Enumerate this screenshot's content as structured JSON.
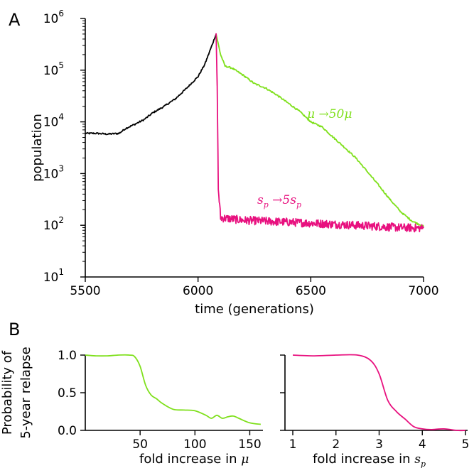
{
  "figure": {
    "panel_a_label": "A",
    "panel_b_label": "B"
  },
  "chart_data": [
    {
      "type": "line",
      "panel": "A",
      "xlabel": "time (generations)",
      "ylabel": "population",
      "xlim": [
        5500,
        7000
      ],
      "ylim": [
        10,
        1000000
      ],
      "yscale": "log",
      "xticks": [
        "5500",
        "6000",
        "6500",
        "7000"
      ],
      "yticks": [
        {
          "base": "10",
          "exp": "1"
        },
        {
          "base": "10",
          "exp": "2"
        },
        {
          "base": "10",
          "exp": "3"
        },
        {
          "base": "10",
          "exp": "4"
        },
        {
          "base": "10",
          "exp": "5"
        },
        {
          "base": "10",
          "exp": "6"
        }
      ],
      "grid": false,
      "series": [
        {
          "color": "#000000",
          "x": [
            5500,
            5550,
            5600,
            5650,
            5680,
            5720,
            5760,
            5800,
            5850,
            5900,
            5950,
            6000,
            6030,
            6050,
            6070,
            6080
          ],
          "y": [
            6000,
            6000,
            5800,
            6000,
            7500,
            9000,
            11000,
            15000,
            20000,
            28000,
            45000,
            75000,
            130000,
            220000,
            380000,
            500000
          ]
        },
        {
          "color": "#7fe01c",
          "annotation": {
            "text": "μ →50μ",
            "x": 6440,
            "y": 16000
          },
          "x": [
            6080,
            6100,
            6120,
            6150,
            6200,
            6250,
            6300,
            6350,
            6400,
            6450,
            6500,
            6550,
            6600,
            6650,
            6700,
            6750,
            6800,
            6850,
            6900,
            6950,
            7000
          ],
          "y": [
            500000,
            200000,
            120000,
            110000,
            80000,
            55000,
            45000,
            33000,
            23000,
            16000,
            10000,
            8000,
            5000,
            3200,
            2000,
            1100,
            600,
            320,
            180,
            120,
            95
          ]
        },
        {
          "color": "#e8117f",
          "annotation": {
            "text": "sp →5sp",
            "x": 6270,
            "y": 180
          },
          "x": [
            6080,
            6085,
            6090,
            6100,
            6200,
            6300,
            6400,
            6500,
            6600,
            6700,
            6800,
            6900,
            7000
          ],
          "y": [
            500000,
            50000,
            500,
            140,
            125,
            120,
            115,
            110,
            105,
            100,
            95,
            90,
            88
          ]
        }
      ]
    },
    {
      "type": "line",
      "panel": "B-left",
      "xlabel": "fold increase in μ",
      "ylabel": "Probability of 5-year relapse",
      "ylabel_lines": [
        "Probability of",
        "5-year relapse"
      ],
      "xlim": [
        0,
        162
      ],
      "ylim": [
        0,
        1
      ],
      "xticks": [
        "50",
        "100",
        "150"
      ],
      "yticks": [
        "0.0",
        "0.5",
        "1.0"
      ],
      "grid": false,
      "series": [
        {
          "color": "#7fe01c",
          "x": [
            0,
            10,
            20,
            30,
            40,
            45,
            50,
            55,
            60,
            65,
            70,
            80,
            90,
            100,
            110,
            115,
            120,
            125,
            130,
            135,
            140,
            150,
            160
          ],
          "y": [
            1.0,
            0.99,
            0.99,
            1.0,
            1.0,
            0.98,
            0.85,
            0.6,
            0.47,
            0.42,
            0.36,
            0.28,
            0.27,
            0.26,
            0.2,
            0.16,
            0.2,
            0.16,
            0.18,
            0.19,
            0.16,
            0.1,
            0.08
          ]
        }
      ]
    },
    {
      "type": "line",
      "panel": "B-right",
      "xlabel": "fold increase in sp",
      "xlim": [
        1,
        5
      ],
      "ylim": [
        0,
        1
      ],
      "xticks": [
        "1",
        "2",
        "3",
        "4",
        "5"
      ],
      "yticks": [],
      "grid": false,
      "series": [
        {
          "color": "#e8117f",
          "x": [
            1,
            1.5,
            2,
            2.5,
            2.8,
            3.0,
            3.2,
            3.4,
            3.6,
            3.8,
            4.0,
            4.2,
            4.5,
            4.8,
            5.0
          ],
          "y": [
            1.0,
            0.99,
            1.0,
            1.0,
            0.93,
            0.75,
            0.4,
            0.25,
            0.15,
            0.05,
            0.02,
            0.01,
            0.02,
            0.0,
            0.0
          ]
        }
      ]
    }
  ]
}
